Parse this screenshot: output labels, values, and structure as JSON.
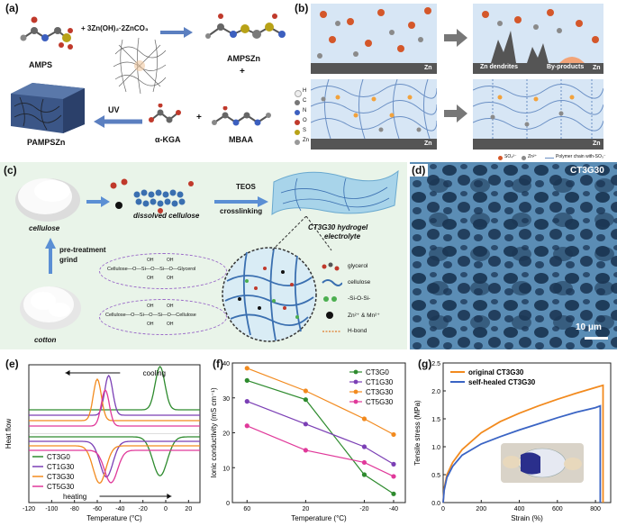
{
  "panels": {
    "a": {
      "letter": "(a)",
      "amps": "AMPS",
      "reagent": "+ 3Zn(OH)₂·2ZnCO₃",
      "ampszn": "AMPSZn",
      "plus1": "+",
      "plus2": "+",
      "uv": "UV",
      "akga": "α-KGA",
      "mbaa": "MBAA",
      "pampszn": "PAMPSZn"
    },
    "b": {
      "letter": "(b)",
      "zn": "Zn",
      "dendrites": "Zn dendrites",
      "byproducts": "By-products",
      "legend_elements": [
        "H",
        "C",
        "N",
        "O",
        "S",
        "Zn"
      ],
      "bottom_legend": [
        "SO₄²⁻",
        "Zn²⁺",
        "Polymer chain with-SO₃⁻"
      ]
    },
    "c": {
      "letter": "(c)",
      "cellulose": "cellulose",
      "dissolved": "dissolved cellulose",
      "teos": "TEOS",
      "crosslinking": "crosslinking",
      "hydrogel": "CT3G30 hydrogel",
      "electrolyte": "electrolyte",
      "pretreatment": "pre-treatment",
      "grind": "grind",
      "cotton": "cotton",
      "formula1": "Cellulose—O—Si—O—Si—O—Glycerol",
      "formula2": "Cellulose—O—Si—O—Si—O—Cellulose",
      "oh": "OH",
      "legend": [
        "glycerol",
        "cellulose",
        "-Si-O-Si-",
        "Zn²⁺ & Mn²⁺",
        "H-bond"
      ]
    },
    "d": {
      "letter": "(d)",
      "sample": "CT3G30",
      "scalebar": "10 μm"
    },
    "e": {
      "letter": "(e)"
    },
    "f": {
      "letter": "(f)"
    },
    "g": {
      "letter": "(g)"
    }
  },
  "chart_data": [
    {
      "panel": "e",
      "type": "line",
      "xlabel": "Temperature (°C)",
      "ylabel": "Heat flow",
      "xlim": [
        -120,
        30
      ],
      "xticks": [
        -120,
        -100,
        -80,
        -60,
        -40,
        -20,
        0,
        20
      ],
      "annotations": [
        "cooling",
        "heating"
      ],
      "series": [
        {
          "name": "CT3G0",
          "color": "#2e8b2e",
          "cooling_peak_x": -5,
          "heating_peak_x": -5
        },
        {
          "name": "CT1G30",
          "color": "#7b3fb5",
          "cooling_peak_x": -50,
          "heating_peak_x": -52
        },
        {
          "name": "CT3G30",
          "color": "#f28a1e",
          "cooling_peak_x": -60,
          "heating_peak_x": -58
        },
        {
          "name": "CT5G30",
          "color": "#e0399a",
          "cooling_peak_x": -53,
          "heating_peak_x": -48
        }
      ]
    },
    {
      "panel": "f",
      "type": "line",
      "xlabel": "Temperature (°C)",
      "ylabel": "Ionic conductivity (mS cm⁻¹)",
      "x": [
        60,
        20,
        -20,
        -40
      ],
      "xticks": [
        60,
        20,
        -20,
        -40
      ],
      "ylim": [
        0,
        40
      ],
      "yticks": [
        0,
        10,
        20,
        30,
        40
      ],
      "series": [
        {
          "name": "CT3G0",
          "color": "#2e8b2e",
          "values": [
            35.0,
            29.5,
            8.0,
            2.5
          ]
        },
        {
          "name": "CT1G30",
          "color": "#7b3fb5",
          "values": [
            29.0,
            22.5,
            16.0,
            11.0
          ]
        },
        {
          "name": "CT3G30",
          "color": "#f28a1e",
          "values": [
            38.5,
            32.0,
            24.0,
            19.5
          ]
        },
        {
          "name": "CT5G30",
          "color": "#e0399a",
          "values": [
            22.0,
            15.0,
            11.5,
            7.5
          ]
        }
      ]
    },
    {
      "panel": "g",
      "type": "line",
      "xlabel": "Strain (%)",
      "ylabel": "Tensile stress (MPa)",
      "xlim": [
        0,
        880
      ],
      "xticks": [
        0,
        200,
        400,
        600,
        800
      ],
      "ylim": [
        0,
        2.5
      ],
      "yticks": [
        0.0,
        0.5,
        1.0,
        1.5,
        2.0,
        2.5
      ],
      "series": [
        {
          "name": "original CT3G30",
          "color": "#f28a1e",
          "x": [
            0,
            5,
            20,
            50,
            100,
            200,
            300,
            400,
            500,
            600,
            700,
            800,
            840
          ],
          "values": [
            0,
            0.25,
            0.5,
            0.72,
            0.95,
            1.25,
            1.45,
            1.6,
            1.73,
            1.85,
            1.96,
            2.06,
            2.1
          ]
        },
        {
          "name": "self-healed CT3G30",
          "color": "#3a64c4",
          "x": [
            0,
            5,
            20,
            50,
            100,
            200,
            300,
            400,
            500,
            600,
            700,
            800,
            825
          ],
          "values": [
            0,
            0.22,
            0.45,
            0.65,
            0.85,
            1.05,
            1.18,
            1.3,
            1.41,
            1.52,
            1.62,
            1.7,
            1.73
          ]
        }
      ]
    }
  ]
}
